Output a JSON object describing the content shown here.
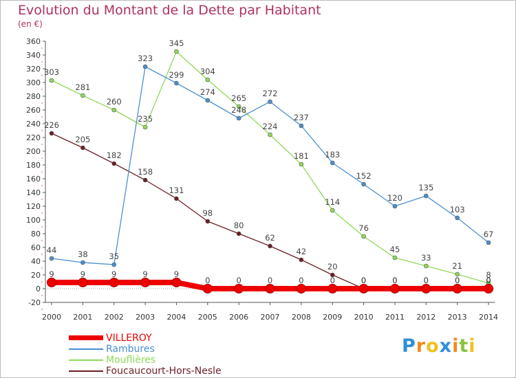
{
  "chart_data": {
    "type": "line",
    "title": "Evolution du Montant de la Dette par Habitant",
    "subtitle": "(en €)",
    "xlabel": "",
    "ylabel": "",
    "ylim": [
      -20,
      360
    ],
    "y_ticks": [
      -20,
      0,
      20,
      40,
      60,
      80,
      100,
      120,
      140,
      160,
      180,
      200,
      220,
      240,
      260,
      280,
      300,
      320,
      340,
      360
    ],
    "x": [
      "2000",
      "2001",
      "2002",
      "2003",
      "2004",
      "2005",
      "2006",
      "2007",
      "2008",
      "2009",
      "2010",
      "2011",
      "2012",
      "2013",
      "2014"
    ],
    "grid": false,
    "legend_position": "bottom-left",
    "series": [
      {
        "name": "Foucaucourt-Hors-Nesle",
        "color": "#6b1f24",
        "values": [
          226,
          205,
          182,
          158,
          131,
          98,
          80,
          62,
          42,
          20,
          0,
          0,
          0,
          0,
          0
        ]
      },
      {
        "name": "Mouflières",
        "color": "#8fd85a",
        "values": [
          303,
          281,
          260,
          235,
          345,
          304,
          265,
          224,
          181,
          114,
          76,
          45,
          33,
          21,
          8
        ]
      },
      {
        "name": "Rambures",
        "color": "#4a8fd0",
        "values": [
          44,
          38,
          35,
          323,
          299,
          274,
          248,
          272,
          237,
          183,
          152,
          120,
          135,
          103,
          67
        ]
      },
      {
        "name": "VILLEROY",
        "color": "#ee0000",
        "values": [
          9,
          9,
          9,
          9,
          9,
          0,
          0,
          0,
          0,
          0,
          0,
          0,
          0,
          0,
          0
        ]
      }
    ]
  },
  "legend": {
    "items": [
      {
        "label": "VILLEROY",
        "color": "#ee0000"
      },
      {
        "label": "Rambures",
        "color": "#4a8fd0"
      },
      {
        "label": "Mouflières",
        "color": "#8fd85a"
      },
      {
        "label": "Foucaucourt-Hors-Nesle",
        "color": "#6b1f24"
      }
    ]
  },
  "logo": {
    "letters": [
      "P",
      "r",
      "o",
      "x",
      "i",
      "t",
      "i"
    ],
    "colors": [
      "#2f8fd8",
      "#f08a1e",
      "#f0c020",
      "#2f8fd8",
      "#f08a1e",
      "#8ac43f",
      "#f0c020"
    ]
  }
}
